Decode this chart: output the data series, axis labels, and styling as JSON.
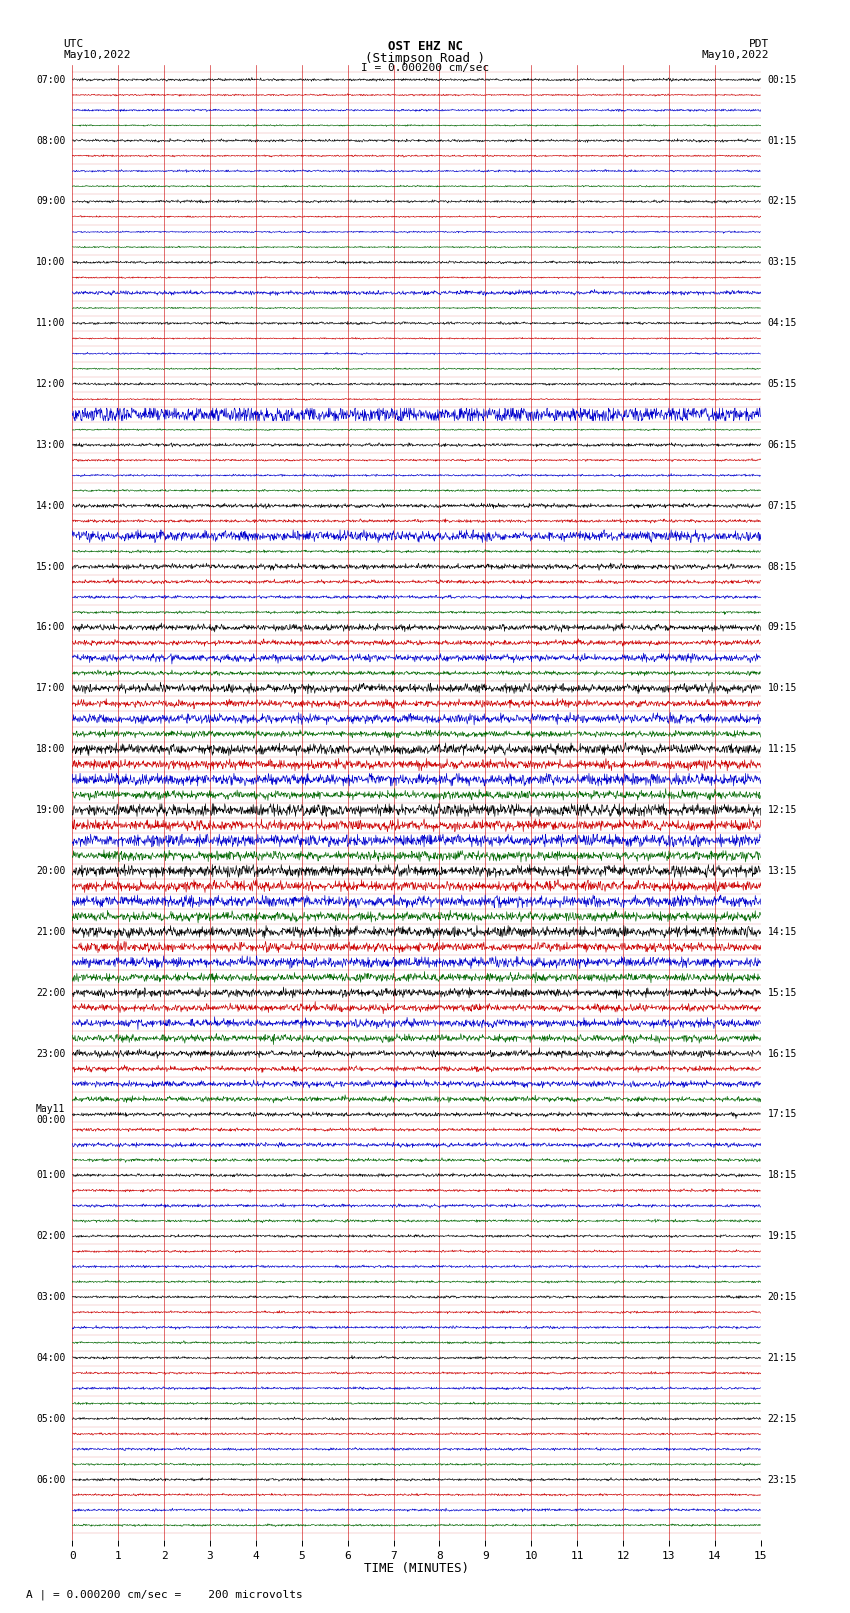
{
  "title_line1": "OST EHZ NC",
  "title_line2": "(Stimpson Road )",
  "title_scale": "I = 0.000200 cm/sec",
  "label_left_top": "UTC",
  "label_left_date": "May10,2022",
  "label_right_top": "PDT",
  "label_right_date": "May10,2022",
  "xlabel": "TIME (MINUTES)",
  "footnote": "A | = 0.000200 cm/sec =    200 microvolts",
  "bg_color": "#ffffff",
  "grid_color": "#cc0000",
  "trace_colors": [
    "#000000",
    "#cc0000",
    "#0000cc",
    "#006600"
  ],
  "utc_labels": [
    "07:00",
    "",
    "",
    "",
    "08:00",
    "",
    "",
    "",
    "09:00",
    "",
    "",
    "",
    "10:00",
    "",
    "",
    "",
    "11:00",
    "",
    "",
    "",
    "12:00",
    "",
    "",
    "",
    "13:00",
    "",
    "",
    "",
    "14:00",
    "",
    "",
    "",
    "15:00",
    "",
    "",
    "",
    "16:00",
    "",
    "",
    "",
    "17:00",
    "",
    "",
    "",
    "18:00",
    "",
    "",
    "",
    "19:00",
    "",
    "",
    "",
    "20:00",
    "",
    "",
    "",
    "21:00",
    "",
    "",
    "",
    "22:00",
    "",
    "",
    "",
    "23:00",
    "",
    "",
    "",
    "May11\n00:00",
    "",
    "",
    "",
    "01:00",
    "",
    "",
    "",
    "02:00",
    "",
    "",
    "",
    "03:00",
    "",
    "",
    "",
    "04:00",
    "",
    "",
    "",
    "05:00",
    "",
    "",
    "",
    "06:00",
    "",
    "",
    ""
  ],
  "pdt_labels": [
    "00:15",
    "",
    "",
    "",
    "01:15",
    "",
    "",
    "",
    "02:15",
    "",
    "",
    "",
    "03:15",
    "",
    "",
    "",
    "04:15",
    "",
    "",
    "",
    "05:15",
    "",
    "",
    "",
    "06:15",
    "",
    "",
    "",
    "07:15",
    "",
    "",
    "",
    "08:15",
    "",
    "",
    "",
    "09:15",
    "",
    "",
    "",
    "10:15",
    "",
    "",
    "",
    "11:15",
    "",
    "",
    "",
    "12:15",
    "",
    "",
    "",
    "13:15",
    "",
    "",
    "",
    "14:15",
    "",
    "",
    "",
    "15:15",
    "",
    "",
    "",
    "16:15",
    "",
    "",
    "",
    "17:15",
    "",
    "",
    "",
    "18:15",
    "",
    "",
    "",
    "19:15",
    "",
    "",
    "",
    "20:15",
    "",
    "",
    "",
    "21:15",
    "",
    "",
    "",
    "22:15",
    "",
    "",
    "",
    "23:15",
    "",
    "",
    ""
  ],
  "noise_amps": [
    0.12,
    0.08,
    0.1,
    0.07,
    0.12,
    0.08,
    0.1,
    0.07,
    0.12,
    0.07,
    0.08,
    0.07,
    0.12,
    0.07,
    0.2,
    0.07,
    0.12,
    0.07,
    0.08,
    0.07,
    0.12,
    0.07,
    0.8,
    0.07,
    0.15,
    0.1,
    0.1,
    0.1,
    0.2,
    0.15,
    0.5,
    0.12,
    0.25,
    0.18,
    0.15,
    0.12,
    0.3,
    0.25,
    0.35,
    0.2,
    0.4,
    0.35,
    0.45,
    0.3,
    0.5,
    0.45,
    0.55,
    0.4,
    0.6,
    0.5,
    0.6,
    0.45,
    0.55,
    0.5,
    0.55,
    0.45,
    0.5,
    0.45,
    0.5,
    0.4,
    0.4,
    0.35,
    0.4,
    0.35,
    0.3,
    0.25,
    0.3,
    0.25,
    0.2,
    0.15,
    0.2,
    0.15,
    0.15,
    0.12,
    0.15,
    0.12,
    0.12,
    0.1,
    0.12,
    0.1,
    0.12,
    0.1,
    0.12,
    0.1,
    0.12,
    0.1,
    0.12,
    0.1,
    0.12,
    0.1,
    0.12,
    0.1,
    0.12,
    0.1,
    0.12,
    0.1
  ]
}
